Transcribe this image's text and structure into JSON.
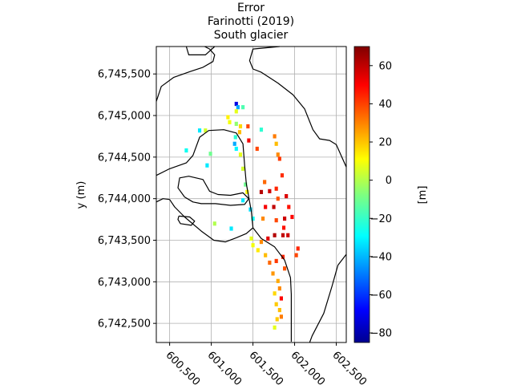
{
  "chart_data": {
    "type": "heatmap",
    "title_lines": [
      "Error",
      "Farinotti (2019)",
      "South glacier"
    ],
    "xlabel": "",
    "ylabel": "y (m)",
    "xlim": [
      600340,
      602620
    ],
    "ylim": [
      6742270,
      6745830
    ],
    "x_ticks": [
      600500,
      601000,
      601500,
      602000,
      602500
    ],
    "x_tick_labels": [
      "600,500",
      "601,000",
      "601,500",
      "602,000",
      "602,500"
    ],
    "y_ticks": [
      6742500,
      6743000,
      6743500,
      6744000,
      6744500,
      6745000,
      6745500
    ],
    "y_tick_labels": [
      "6,742,500",
      "6,743,000",
      "6,743,500",
      "6,744,000",
      "6,744,500",
      "6,745,000",
      "6,745,500"
    ],
    "grid": true,
    "colorbar": {
      "label": "[m]",
      "range": [
        -85,
        70
      ],
      "ticks": [
        -80,
        -60,
        -40,
        -20,
        0,
        20,
        40,
        60
      ],
      "tick_labels": [
        "−80",
        "−60",
        "−40",
        "−20",
        "0",
        "20",
        "40",
        "60"
      ],
      "colormap": "jet"
    },
    "outlines": [
      {
        "name": "outer-glacier-west",
        "points": [
          [
            600340,
            6745170
          ],
          [
            600400,
            6745350
          ],
          [
            600550,
            6745460
          ],
          [
            600750,
            6745530
          ],
          [
            600900,
            6745580
          ],
          [
            601020,
            6745650
          ],
          [
            601040,
            6745730
          ],
          [
            600980,
            6745800
          ],
          [
            600920,
            6745830
          ]
        ]
      },
      {
        "name": "top-inset-shape",
        "points": [
          [
            600700,
            6745830
          ],
          [
            600730,
            6745730
          ],
          [
            600930,
            6745730
          ],
          [
            601040,
            6745830
          ]
        ]
      },
      {
        "name": "outer-glacier-east",
        "points": [
          [
            601820,
            6745830
          ],
          [
            601500,
            6745800
          ],
          [
            601460,
            6745660
          ],
          [
            601500,
            6745560
          ],
          [
            601600,
            6745520
          ],
          [
            601800,
            6745390
          ],
          [
            601980,
            6745250
          ],
          [
            602120,
            6745080
          ],
          [
            602220,
            6744830
          ],
          [
            602300,
            6744720
          ],
          [
            602420,
            6744700
          ],
          [
            602500,
            6744650
          ],
          [
            602620,
            6744380
          ]
        ]
      },
      {
        "name": "inner-glacier-loop",
        "points": [
          [
            600340,
            6744280
          ],
          [
            600500,
            6744360
          ],
          [
            600700,
            6744430
          ],
          [
            600780,
            6744520
          ],
          [
            600860,
            6744740
          ],
          [
            600970,
            6744820
          ],
          [
            601150,
            6744830
          ],
          [
            601300,
            6744790
          ],
          [
            601380,
            6744660
          ],
          [
            601400,
            6744400
          ],
          [
            601420,
            6744180
          ],
          [
            601480,
            6743850
          ],
          [
            601500,
            6743650
          ],
          [
            601600,
            6743520
          ],
          [
            601760,
            6743420
          ],
          [
            601880,
            6743260
          ],
          [
            601950,
            6743050
          ],
          [
            601960,
            6742850
          ],
          [
            601960,
            6742280
          ]
        ]
      },
      {
        "name": "inner-glacier-lower",
        "points": [
          [
            600500,
            6743990
          ],
          [
            600560,
            6743900
          ],
          [
            600680,
            6743780
          ],
          [
            600880,
            6743610
          ],
          [
            601030,
            6743500
          ],
          [
            601170,
            6743480
          ],
          [
            601300,
            6743530
          ],
          [
            601420,
            6743580
          ],
          [
            601500,
            6743650
          ]
        ]
      },
      {
        "name": "inner-glacier-lower-cap",
        "points": [
          [
            600340,
            6743960
          ],
          [
            600420,
            6744000
          ],
          [
            600500,
            6743990
          ]
        ]
      },
      {
        "name": "nunatak-small",
        "points": [
          [
            600610,
            6743790
          ],
          [
            600740,
            6743780
          ],
          [
            600800,
            6743730
          ],
          [
            600760,
            6743680
          ],
          [
            600630,
            6743700
          ],
          [
            600600,
            6743750
          ],
          [
            600610,
            6743790
          ]
        ]
      },
      {
        "name": "nunatak-large",
        "points": [
          [
            600680,
            6744020
          ],
          [
            600600,
            6744130
          ],
          [
            600620,
            6744250
          ],
          [
            600730,
            6744270
          ],
          [
            600900,
            6744230
          ],
          [
            600980,
            6744090
          ],
          [
            601080,
            6744050
          ],
          [
            601230,
            6744040
          ],
          [
            601380,
            6744070
          ],
          [
            601450,
            6744000
          ],
          [
            601400,
            6743930
          ],
          [
            601230,
            6743920
          ],
          [
            601050,
            6743940
          ],
          [
            600880,
            6743940
          ],
          [
            600780,
            6743960
          ],
          [
            600680,
            6744020
          ]
        ]
      },
      {
        "name": "valley-se",
        "points": [
          [
            602620,
            6743330
          ],
          [
            602520,
            6743200
          ],
          [
            602450,
            6742950
          ],
          [
            602350,
            6742620
          ],
          [
            602210,
            6742350
          ],
          [
            602180,
            6742270
          ]
        ]
      }
    ],
    "error_cells": [
      {
        "x": 601300,
        "y": 6745140,
        "v": -70
      },
      {
        "x": 601320,
        "y": 6745100,
        "v": -40
      },
      {
        "x": 601300,
        "y": 6745050,
        "v": 8
      },
      {
        "x": 601380,
        "y": 6745100,
        "v": -15
      },
      {
        "x": 601200,
        "y": 6744980,
        "v": 14
      },
      {
        "x": 601220,
        "y": 6744920,
        "v": 10
      },
      {
        "x": 601300,
        "y": 6744900,
        "v": -5
      },
      {
        "x": 601350,
        "y": 6744870,
        "v": 18
      },
      {
        "x": 601440,
        "y": 6744870,
        "v": 40
      },
      {
        "x": 601340,
        "y": 6744800,
        "v": 22
      },
      {
        "x": 601290,
        "y": 6744740,
        "v": -20
      },
      {
        "x": 601300,
        "y": 6744600,
        "v": -28
      },
      {
        "x": 601280,
        "y": 6744660,
        "v": -40
      },
      {
        "x": 601600,
        "y": 6744830,
        "v": -20
      },
      {
        "x": 601450,
        "y": 6744700,
        "v": 52
      },
      {
        "x": 601550,
        "y": 6744600,
        "v": 40
      },
      {
        "x": 601760,
        "y": 6744750,
        "v": 32
      },
      {
        "x": 601780,
        "y": 6744660,
        "v": 22
      },
      {
        "x": 601800,
        "y": 6744530,
        "v": 30
      },
      {
        "x": 601820,
        "y": 6744480,
        "v": 42
      },
      {
        "x": 601350,
        "y": 6744530,
        "v": 8
      },
      {
        "x": 601380,
        "y": 6744360,
        "v": 5
      },
      {
        "x": 601410,
        "y": 6744170,
        "v": -10
      },
      {
        "x": 601430,
        "y": 6744080,
        "v": 12
      },
      {
        "x": 601380,
        "y": 6743980,
        "v": -30
      },
      {
        "x": 601600,
        "y": 6744080,
        "v": 62
      },
      {
        "x": 601700,
        "y": 6744090,
        "v": 58
      },
      {
        "x": 601780,
        "y": 6744120,
        "v": 45
      },
      {
        "x": 601640,
        "y": 6744200,
        "v": 35
      },
      {
        "x": 601850,
        "y": 6744280,
        "v": 44
      },
      {
        "x": 601900,
        "y": 6744030,
        "v": 56
      },
      {
        "x": 601800,
        "y": 6744000,
        "v": 38
      },
      {
        "x": 601650,
        "y": 6743900,
        "v": 52
      },
      {
        "x": 601750,
        "y": 6743900,
        "v": 60
      },
      {
        "x": 601930,
        "y": 6743900,
        "v": 48
      },
      {
        "x": 601970,
        "y": 6743780,
        "v": 50
      },
      {
        "x": 601880,
        "y": 6743760,
        "v": 58
      },
      {
        "x": 601780,
        "y": 6743740,
        "v": 40
      },
      {
        "x": 601620,
        "y": 6743760,
        "v": 30
      },
      {
        "x": 601500,
        "y": 6743760,
        "v": -25
      },
      {
        "x": 601470,
        "y": 6743870,
        "v": -32
      },
      {
        "x": 601870,
        "y": 6743650,
        "v": 48
      },
      {
        "x": 601760,
        "y": 6743560,
        "v": 62
      },
      {
        "x": 601860,
        "y": 6743560,
        "v": 60
      },
      {
        "x": 601920,
        "y": 6743560,
        "v": 58
      },
      {
        "x": 601680,
        "y": 6743520,
        "v": 55
      },
      {
        "x": 601600,
        "y": 6743480,
        "v": 30
      },
      {
        "x": 601480,
        "y": 6743520,
        "v": 8
      },
      {
        "x": 601500,
        "y": 6743440,
        "v": 10
      },
      {
        "x": 601560,
        "y": 6743380,
        "v": 15
      },
      {
        "x": 601650,
        "y": 6743320,
        "v": 22
      },
      {
        "x": 601700,
        "y": 6743230,
        "v": 35
      },
      {
        "x": 601780,
        "y": 6743250,
        "v": 42
      },
      {
        "x": 601860,
        "y": 6743300,
        "v": 45
      },
      {
        "x": 602020,
        "y": 6743320,
        "v": 40
      },
      {
        "x": 602040,
        "y": 6743400,
        "v": 45
      },
      {
        "x": 601880,
        "y": 6743160,
        "v": 38
      },
      {
        "x": 601740,
        "y": 6743100,
        "v": 28
      },
      {
        "x": 601800,
        "y": 6743010,
        "v": 25
      },
      {
        "x": 601820,
        "y": 6742920,
        "v": 30
      },
      {
        "x": 601760,
        "y": 6742860,
        "v": 18
      },
      {
        "x": 601840,
        "y": 6742800,
        "v": 50
      },
      {
        "x": 601780,
        "y": 6742730,
        "v": 20
      },
      {
        "x": 601820,
        "y": 6742660,
        "v": 22
      },
      {
        "x": 601790,
        "y": 6742550,
        "v": 20
      },
      {
        "x": 601840,
        "y": 6742580,
        "v": 32
      },
      {
        "x": 601760,
        "y": 6742450,
        "v": 8
      },
      {
        "x": 600860,
        "y": 6744820,
        "v": -30
      },
      {
        "x": 600930,
        "y": 6744820,
        "v": 5
      },
      {
        "x": 600700,
        "y": 6744580,
        "v": -25
      },
      {
        "x": 600950,
        "y": 6744400,
        "v": -30
      },
      {
        "x": 600990,
        "y": 6744540,
        "v": -10
      },
      {
        "x": 601040,
        "y": 6743700,
        "v": 0
      },
      {
        "x": 601240,
        "y": 6743640,
        "v": -30
      }
    ]
  }
}
